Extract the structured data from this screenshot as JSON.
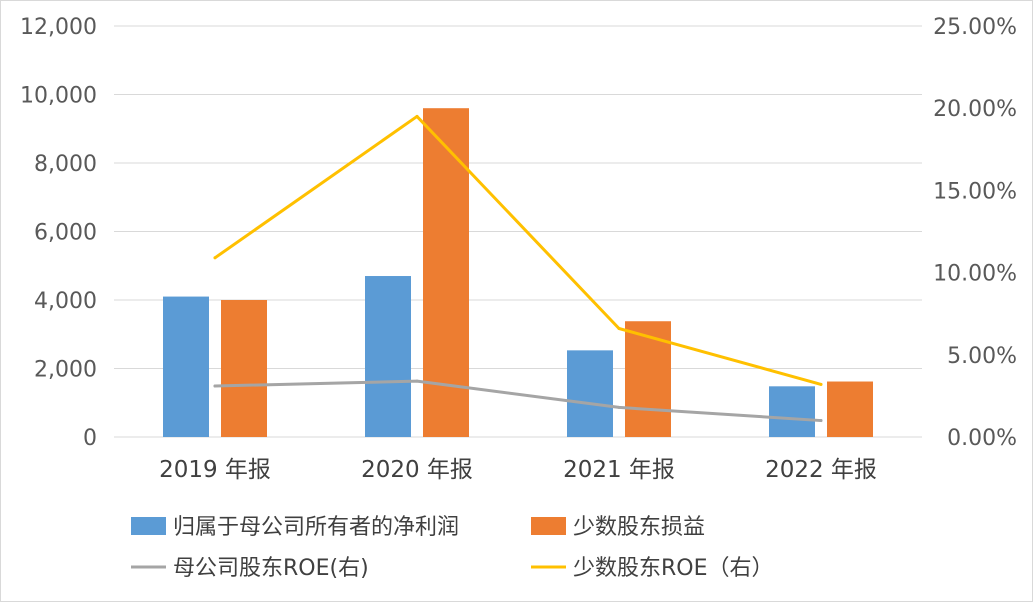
{
  "chart_data": {
    "type": "bar",
    "categories": [
      "2019 年报",
      "2020 年报",
      "2021 年报",
      "2022 年报"
    ],
    "left_axis": {
      "ylim": [
        0,
        12000
      ],
      "ticks": [
        "0",
        "2,000",
        "4,000",
        "6,000",
        "8,000",
        "10,000",
        "12,000"
      ],
      "tick_values": [
        0,
        2000,
        4000,
        6000,
        8000,
        10000,
        12000
      ]
    },
    "right_axis": {
      "ylim": [
        0,
        25
      ],
      "ticks": [
        "0.00%",
        "5.00%",
        "10.00%",
        "15.00%",
        "20.00%",
        "25.00%"
      ],
      "tick_values": [
        0,
        5,
        10,
        15,
        20,
        25
      ]
    },
    "grid": true,
    "legend_position": "bottom",
    "bar_series": [
      {
        "name": "归属于母公司所有者的净利润",
        "color": "#5b9bd5",
        "values": [
          4100,
          4700,
          2530,
          1480
        ]
      },
      {
        "name": "少数股东损益",
        "color": "#ed7d31",
        "values": [
          4000,
          9600,
          3380,
          1620
        ]
      }
    ],
    "line_series": [
      {
        "name": "母公司股东ROE(右)",
        "color": "#a5a5a5",
        "axis": "right",
        "values": [
          3.1,
          3.4,
          1.8,
          1.0
        ]
      },
      {
        "name": "少数股东ROE（右）",
        "color": "#ffc000",
        "axis": "right",
        "values": [
          10.9,
          19.5,
          6.6,
          3.2
        ]
      }
    ]
  }
}
